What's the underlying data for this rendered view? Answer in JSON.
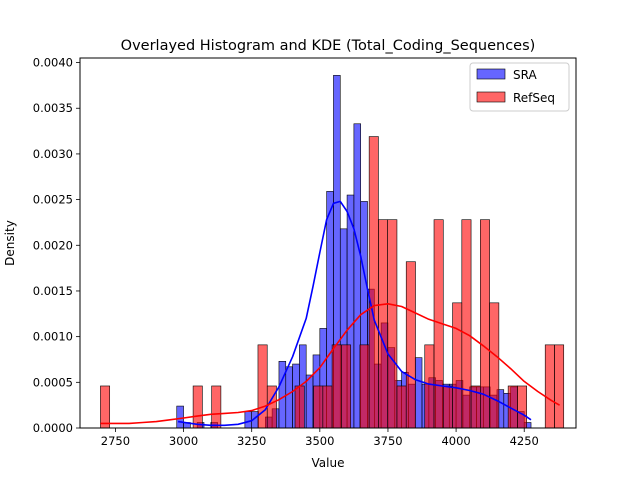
{
  "chart_data": {
    "type": "bar",
    "title": "Overlayed Histogram and KDE (Total_Coding_Sequences)",
    "xlabel": "Value",
    "ylabel": "Density",
    "xlim": [
      2620,
      4440
    ],
    "ylim": [
      0,
      0.00405
    ],
    "xticks": [
      2750,
      3000,
      3250,
      3500,
      3750,
      4000,
      4250
    ],
    "yticks": [
      0.0,
      0.0005,
      0.001,
      0.0015,
      0.002,
      0.0025,
      0.003,
      0.0035,
      0.004
    ],
    "xtick_labels": [
      "2750",
      "3000",
      "3250",
      "3500",
      "3750",
      "4000",
      "4250"
    ],
    "ytick_labels": [
      "0.0000",
      "0.0005",
      "0.0010",
      "0.0015",
      "0.0020",
      "0.0025",
      "0.0030",
      "0.0035",
      "0.0040"
    ],
    "legend_position": "top-right",
    "series": [
      {
        "name": "SRA",
        "color": "#0000ff",
        "bin_edges": [
          2975,
          3000,
          3025,
          3050,
          3075,
          3100,
          3125,
          3150,
          3175,
          3200,
          3225,
          3250,
          3275,
          3300,
          3325,
          3350,
          3375,
          3400,
          3425,
          3450,
          3475,
          3500,
          3525,
          3550,
          3575,
          3600,
          3625,
          3650,
          3675,
          3700,
          3725,
          3750,
          3775,
          3800,
          3825,
          3850,
          3875,
          3900,
          3925,
          3950,
          3975,
          4000,
          4025,
          4050,
          4075,
          4100,
          4125,
          4150,
          4175,
          4200,
          4225,
          4250,
          4275
        ],
        "values": [
          0.00024,
          6e-05,
          0.0,
          6e-05,
          0.0,
          6e-05,
          0.0,
          0.0,
          0.0,
          0.0,
          0.00018,
          0.00018,
          0.0,
          0.00012,
          0.00021,
          0.00073,
          0.00067,
          0.0007,
          0.00091,
          0.00058,
          0.0008,
          0.00109,
          0.00259,
          0.00386,
          0.00218,
          0.00255,
          0.00333,
          0.00248,
          0.00152,
          0.0007,
          0.00115,
          0.00088,
          0.00052,
          0.00061,
          0.00048,
          0.00077,
          0.00048,
          0.00055,
          0.00052,
          0.00048,
          0.00048,
          0.00052,
          0.00036,
          0.00045,
          0.00045,
          0.00045,
          0.00036,
          0.00042,
          0.00038,
          0.00045,
          0.00018,
          6e-05
        ]
      },
      {
        "name": "RefSeq",
        "color": "#ff0000",
        "bin_edges": [
          2695,
          2729,
          2763,
          2797,
          2831,
          2865,
          2899,
          2933,
          2967,
          3001,
          3035,
          3069,
          3103,
          3137,
          3171,
          3205,
          3239,
          3273,
          3307,
          3341,
          3375,
          3409,
          3443,
          3477,
          3511,
          3545,
          3579,
          3613,
          3647,
          3681,
          3715,
          3749,
          3783,
          3817,
          3851,
          3885,
          3919,
          3953,
          3987,
          4021,
          4055,
          4089,
          4123,
          4157,
          4191,
          4225,
          4259,
          4293,
          4327,
          4361,
          4395
        ],
        "values": [
          0.00046,
          0.0,
          0.0,
          0.0,
          0.0,
          0.0,
          0.0,
          0.0,
          0.0,
          0.0,
          0.00046,
          0.0,
          0.00046,
          0.0,
          0.0,
          0.0,
          0.0,
          0.00091,
          0.00046,
          0.0,
          0.0,
          0.00046,
          0.0,
          0.00046,
          0.00046,
          0.00091,
          0.00091,
          0.0,
          0.00091,
          0.00319,
          0.00228,
          0.00228,
          0.00046,
          0.00182,
          0.0,
          0.00091,
          0.00228,
          0.00046,
          0.00137,
          0.00228,
          0.00046,
          0.00228,
          0.00137,
          0.0,
          0.00046,
          0.00046,
          0.0,
          0.0,
          0.00091,
          0.00091
        ]
      }
    ],
    "kde": [
      {
        "name": "SRA",
        "color": "#0000ff",
        "x": [
          2980,
          3050,
          3100,
          3150,
          3200,
          3250,
          3300,
          3350,
          3400,
          3450,
          3475,
          3500,
          3525,
          3550,
          3575,
          3600,
          3625,
          3650,
          3675,
          3700,
          3750,
          3800,
          3850,
          3900,
          3950,
          4000,
          4050,
          4100,
          4150,
          4200,
          4250,
          4275
        ],
        "y": [
          7e-05,
          4e-05,
          3e-05,
          3e-05,
          4e-05,
          8e-05,
          0.0002,
          0.00045,
          0.00078,
          0.0012,
          0.00155,
          0.00192,
          0.00228,
          0.00246,
          0.00248,
          0.00237,
          0.00218,
          0.00188,
          0.00152,
          0.00118,
          0.00081,
          0.00062,
          0.00053,
          0.00048,
          0.00046,
          0.00044,
          0.00041,
          0.00037,
          0.0003,
          0.00022,
          0.00014,
          9e-05
        ]
      },
      {
        "name": "RefSeq",
        "color": "#ff0000",
        "x": [
          2695,
          2750,
          2800,
          2850,
          2900,
          2950,
          3000,
          3050,
          3100,
          3150,
          3200,
          3250,
          3300,
          3350,
          3400,
          3450,
          3500,
          3550,
          3600,
          3650,
          3700,
          3750,
          3800,
          3850,
          3900,
          3950,
          4000,
          4050,
          4100,
          4150,
          4200,
          4250,
          4300,
          4350,
          4380
        ],
        "y": [
          5e-05,
          5e-05,
          5e-05,
          6e-05,
          7e-05,
          9e-05,
          0.00011,
          0.00013,
          0.00015,
          0.00016,
          0.00017,
          0.00019,
          0.00024,
          0.00031,
          0.0004,
          0.00051,
          0.00066,
          0.00087,
          0.00107,
          0.00124,
          0.00134,
          0.00136,
          0.00133,
          0.00126,
          0.00119,
          0.00114,
          0.00109,
          0.00101,
          0.0009,
          0.00078,
          0.00065,
          0.00051,
          0.0004,
          0.0003,
          0.00025
        ]
      }
    ]
  }
}
